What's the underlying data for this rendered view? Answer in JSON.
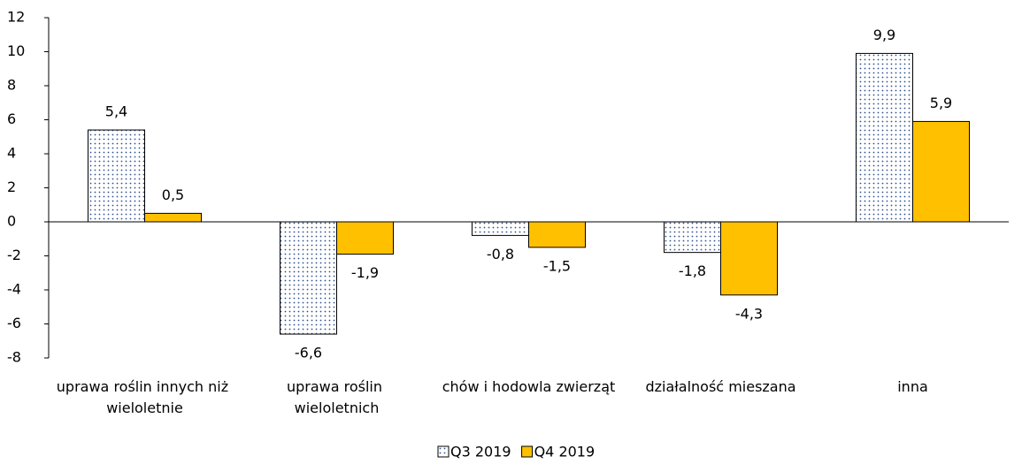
{
  "chart_data": {
    "type": "bar",
    "categories": [
      "uprawa roślin innych niż wieloletnie",
      "uprawa roślin wieloletnich",
      "chów i hodowla zwierząt",
      "działalność mieszana",
      "inna"
    ],
    "series": [
      {
        "name": "Q3 2019",
        "color": "#2e4f8f",
        "values": [
          5.4,
          -6.6,
          -0.8,
          -1.8,
          9.9
        ],
        "value_labels": [
          "5,4",
          "-6,6",
          "-0,8",
          "-1,8",
          "9,9"
        ]
      },
      {
        "name": "Q4 2019",
        "color": "#ffc000",
        "values": [
          0.5,
          -1.9,
          -1.5,
          -4.3,
          5.9
        ],
        "value_labels": [
          "0,5",
          "-1,9",
          "-1,5",
          "-4,3",
          "5,9"
        ]
      }
    ],
    "ylim": [
      -8,
      12
    ],
    "yticks": [
      -8,
      -6,
      -4,
      -2,
      0,
      2,
      4,
      6,
      8,
      10,
      12
    ]
  }
}
